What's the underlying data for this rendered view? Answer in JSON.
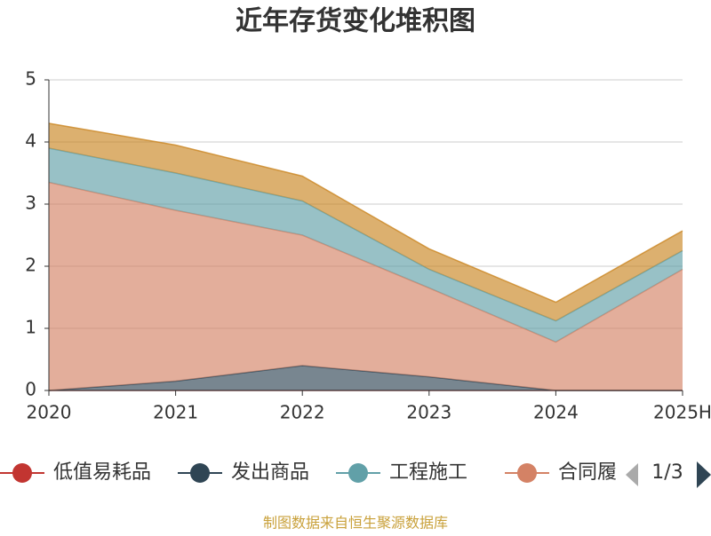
{
  "chart_data": {
    "type": "stacked-area",
    "title": "近年存货变化堆积图",
    "categories": [
      "2020",
      "2021",
      "2022",
      "2023",
      "2024",
      "2025H"
    ],
    "series": [
      {
        "name": "低值易耗品",
        "color": "#c23531",
        "values": [
          0,
          0,
          0,
          0,
          0,
          0
        ]
      },
      {
        "name": "发出商品",
        "color": "#2f4554",
        "values": [
          0,
          0.15,
          0.4,
          0.22,
          0,
          0
        ]
      },
      {
        "name": "合同履",
        "color": "#d48265",
        "values": [
          3.35,
          2.75,
          2.1,
          1.43,
          0.78,
          1.95
        ]
      },
      {
        "name": "工程施工",
        "color": "#61a0a8",
        "values": [
          0.55,
          0.6,
          0.55,
          0.3,
          0.34,
          0.3
        ]
      },
      {
        "color": "#ca8622",
        "values": [
          0.4,
          0.45,
          0.4,
          0.33,
          0.3,
          0.32
        ]
      }
    ],
    "legend_order": [
      0,
      1,
      3,
      2
    ],
    "legend_page": "1/3",
    "ylim": [
      0,
      5
    ],
    "yticks": [
      0,
      1,
      2,
      3,
      4,
      5
    ],
    "grid": true,
    "source": "制图数据来自恒生聚源数据库"
  }
}
